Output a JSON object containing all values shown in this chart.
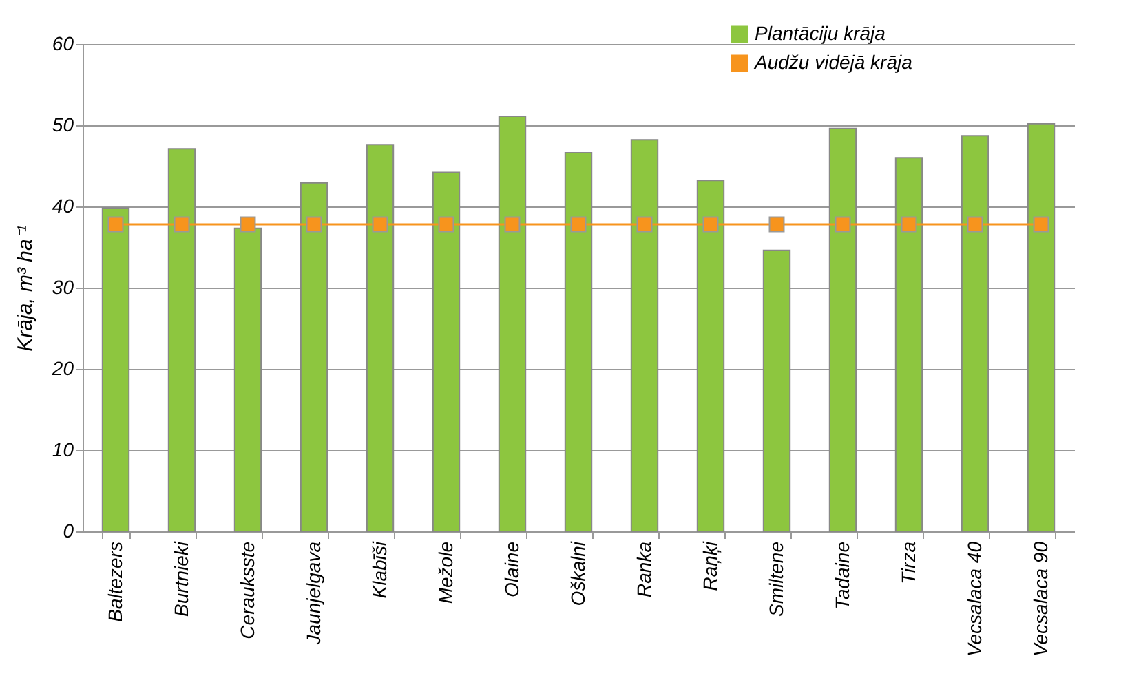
{
  "chart_data": {
    "type": "bar",
    "ylabel": "Krāja, m³ ha⁻¹",
    "categories": [
      "Baltezers",
      "Burtnieki",
      "Cerauksste",
      "Jaunjelgava",
      "Klabīši",
      "Mežole",
      "Olaine",
      "Oškalni",
      "Ranka",
      "Raņķi",
      "Smiltene",
      "Tadaine",
      "Tirza",
      "Vecsalaca 40",
      "Vecsalaca 90"
    ],
    "series": [
      {
        "name": "Plantāciju krāja",
        "color": "#8dc63f",
        "values": [
          39.8,
          47.1,
          37.3,
          42.9,
          47.6,
          44.2,
          51.1,
          46.6,
          48.2,
          43.2,
          34.6,
          49.6,
          46.0,
          48.7,
          50.2
        ]
      },
      {
        "name": "Audžu vidējā krāja",
        "type": "line",
        "color": "#f7941d",
        "marker": "square",
        "line_style": "solid",
        "values": [
          37.8,
          37.8,
          37.8,
          37.8,
          37.8,
          37.8,
          37.8,
          37.8,
          37.8,
          37.8,
          37.8,
          37.8,
          37.8,
          37.8,
          37.8
        ]
      }
    ],
    "ylim": [
      0,
      60
    ],
    "yticks": [
      0,
      10,
      20,
      30,
      40,
      50,
      60
    ],
    "grid": "y",
    "legend": "top right"
  }
}
